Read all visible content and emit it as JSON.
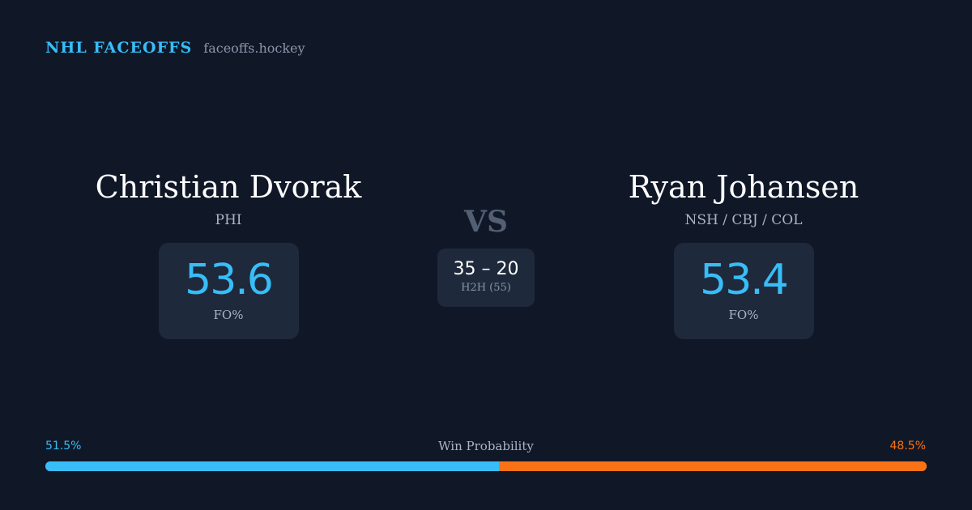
{
  "brand": {
    "name": "NHL FACEOFFS",
    "domain": "faceoffs.hockey"
  },
  "players": {
    "left": {
      "name": "Christian Dvorak",
      "team": "PHI",
      "stat_value": "53.6",
      "stat_label": "FO%"
    },
    "right": {
      "name": "Ryan Johansen",
      "team": "NSH / CBJ / COL",
      "stat_value": "53.4",
      "stat_label": "FO%"
    }
  },
  "vs_label": "VS",
  "head_to_head": {
    "score": "35 – 20",
    "label": "H2H (55)"
  },
  "win_probability": {
    "title": "Win Probability",
    "left_label": "51.5%",
    "right_label": "48.5%",
    "left_fraction": 0.515,
    "left_color": "#38bdf8",
    "right_color": "#f97316"
  },
  "colors": {
    "background": "#101828",
    "card": "#1e293b",
    "accent": "#38bdf8",
    "opponent_accent": "#f97316"
  }
}
